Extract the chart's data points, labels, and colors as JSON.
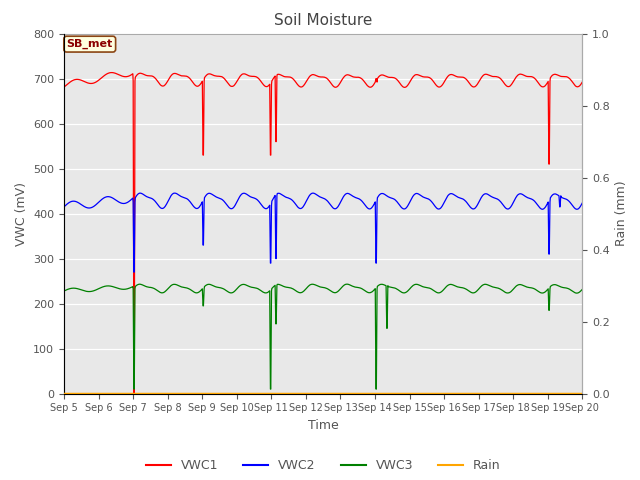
{
  "title": "Soil Moisture",
  "xlabel": "Time",
  "ylabel_left": "VWC (mV)",
  "ylabel_right": "Rain (mm)",
  "ylim_left": [
    0,
    800
  ],
  "ylim_right": [
    0.0,
    1.0
  ],
  "annotation_text": "SB_met",
  "annotation_color": "#8B0000",
  "annotation_bg": "#FFFFE0",
  "annotation_border": "#8B4513",
  "xtick_labels": [
    "Sep 5",
    "Sep 6",
    "Sep 7",
    "Sep 8",
    "Sep 9",
    "Sep 10",
    "Sep 11",
    "Sep 12",
    "Sep 13",
    "Sep 14",
    "Sep 15",
    "Sep 16",
    "Sep 17",
    "Sep 18",
    "Sep 19",
    "Sep 20"
  ],
  "legend_entries": [
    "VWC1",
    "VWC2",
    "VWC3",
    "Rain"
  ],
  "legend_colors": [
    "red",
    "blue",
    "green",
    "orange"
  ],
  "figure_bg": "#ffffff",
  "axes_bg": "#e8e8e8",
  "grid_color": "#ffffff",
  "yticks_left": [
    0,
    100,
    200,
    300,
    400,
    500,
    600,
    700,
    800
  ],
  "yticks_right": [
    0.0,
    0.2,
    0.4,
    0.6,
    0.8,
    1.0
  ],
  "n_days": 15,
  "vwc1_base": 700,
  "vwc2_base": 430,
  "vwc3_base": 235
}
